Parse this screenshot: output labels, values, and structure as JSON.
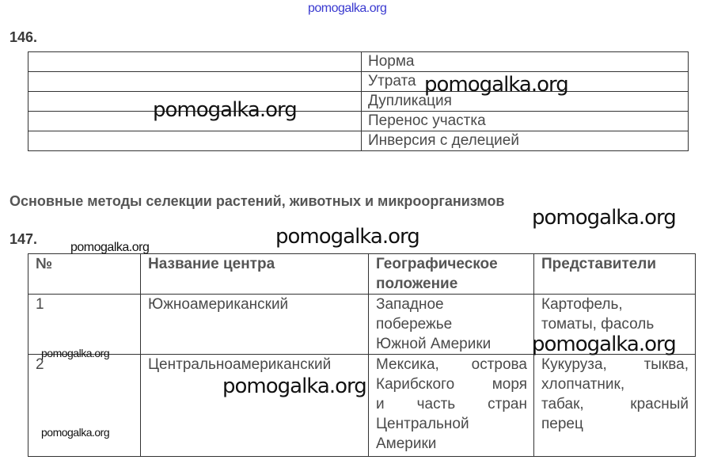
{
  "watermark": "pomogalka.org",
  "task146": {
    "number": "146.",
    "rows": [
      "Норма",
      "Утрата",
      "Дупликация",
      "Перенос участка",
      "Инверсия с делецией"
    ]
  },
  "section_heading": "Основные методы селекции растений, животных и микроорганизмов",
  "task147": {
    "number": "147.",
    "headers": [
      "№",
      "Название центра",
      "Географическое положение",
      "Представители"
    ],
    "rows": [
      {
        "no": "1",
        "name": "Южноамериканский",
        "location": [
          "Западное",
          "побережье",
          "Южной Америки"
        ],
        "representatives": [
          "Картофель,",
          "томаты, фасоль"
        ]
      },
      {
        "no": "2",
        "name": "Центральноамериканский",
        "location": [
          "Мексика, острова",
          "Карибского моря",
          "и часть стран",
          "Центральной",
          "Америки"
        ],
        "representatives": [
          "Кукуруза, тыква,",
          "хлопчатник,",
          "табак, красный",
          "перец"
        ]
      }
    ]
  }
}
